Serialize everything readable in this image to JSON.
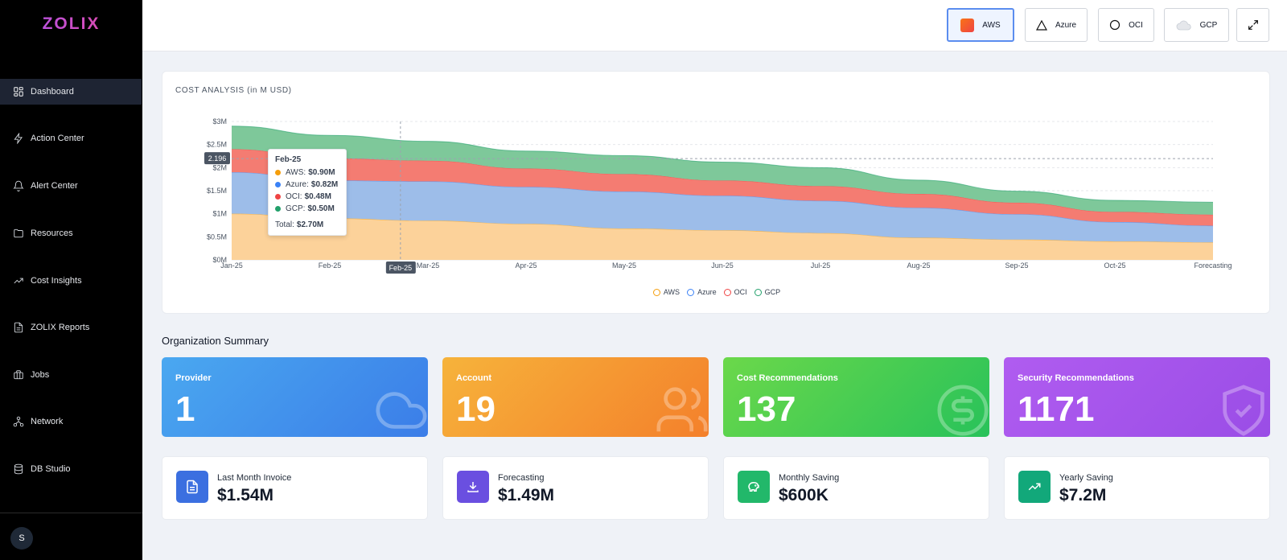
{
  "app": {
    "logo": "ZOLIX"
  },
  "sidebar": {
    "items": [
      {
        "label": "Dashboard",
        "icon": "dashboard-grid-icon"
      },
      {
        "label": "Action Center",
        "icon": "lightning-icon"
      },
      {
        "label": "Alert Center",
        "icon": "bell-icon"
      },
      {
        "label": "Resources",
        "icon": "folder-icon"
      },
      {
        "label": "Cost Insights",
        "icon": "trend-up-icon"
      },
      {
        "label": "ZOLIX Reports",
        "icon": "document-icon"
      },
      {
        "label": "Jobs",
        "icon": "briefcase-icon"
      },
      {
        "label": "Network",
        "icon": "network-icon"
      },
      {
        "label": "DB Studio",
        "icon": "database-icon"
      }
    ],
    "user_initial": "S"
  },
  "topbar": {
    "providers": [
      {
        "label": "AWS",
        "icon": "aws-square-icon",
        "active": true
      },
      {
        "label": "Azure",
        "icon": "triangle-icon",
        "active": false
      },
      {
        "label": "OCI",
        "icon": "circle-icon",
        "active": false
      },
      {
        "label": "GCP",
        "icon": "cloud-icon",
        "active": false
      }
    ]
  },
  "chart_title": "COST ANALYSIS (in M USD)",
  "chart_data": {
    "type": "area",
    "stacked": true,
    "x": [
      "Jan-25",
      "Feb-25",
      "Mar-25",
      "Apr-25",
      "May-25",
      "Jun-25",
      "Jul-25",
      "Aug-25",
      "Sep-25",
      "Oct-25",
      "Forecasting"
    ],
    "series": [
      {
        "name": "AWS",
        "color": "#f59e0b",
        "values": [
          1.0,
          0.9,
          0.85,
          0.78,
          0.68,
          0.64,
          0.58,
          0.48,
          0.44,
          0.4,
          0.38
        ]
      },
      {
        "name": "Azure",
        "color": "#3b82f6",
        "values": [
          0.9,
          0.82,
          0.85,
          0.8,
          0.8,
          0.75,
          0.7,
          0.65,
          0.55,
          0.42,
          0.36
        ]
      },
      {
        "name": "OCI",
        "color": "#ef4444",
        "values": [
          0.5,
          0.48,
          0.45,
          0.4,
          0.38,
          0.33,
          0.32,
          0.3,
          0.25,
          0.22,
          0.24
        ]
      },
      {
        "name": "GCP",
        "color": "#22a06b",
        "values": [
          0.5,
          0.5,
          0.42,
          0.38,
          0.4,
          0.4,
          0.4,
          0.3,
          0.25,
          0.25,
          0.27
        ]
      }
    ],
    "yticks": [
      "$0M",
      "$0.5M",
      "$1M",
      "$1.5M",
      "$2M",
      "$2.5M",
      "$3M"
    ],
    "ylim": [
      0,
      3
    ],
    "crosshair_x_label": "Feb-25",
    "crosshair_y_label": "2.196",
    "crosshair_y_value": 2.196,
    "crosshair_x_index": 1.72,
    "legend": [
      "AWS",
      "Azure",
      "OCI",
      "GCP"
    ],
    "legend_position": "bottom-center",
    "grid": true,
    "tooltip": {
      "title": "Feb-25",
      "rows": [
        {
          "label": "AWS:",
          "value": "$0.90M",
          "color": "#f59e0b"
        },
        {
          "label": "Azure:",
          "value": "$0.82M",
          "color": "#3b82f6"
        },
        {
          "label": "OCI:",
          "value": "$0.48M",
          "color": "#ef4444"
        },
        {
          "label": "GCP:",
          "value": "$0.50M",
          "color": "#22a06b"
        }
      ],
      "total_label": "Total:",
      "total_value": "$2.70M"
    }
  },
  "org": {
    "title": "Organization Summary",
    "stats": [
      {
        "label": "Provider",
        "value": "1",
        "icon": "cloud-icon"
      },
      {
        "label": "Account",
        "value": "19",
        "icon": "users-icon"
      },
      {
        "label": "Cost Recommendations",
        "value": "137",
        "icon": "dollar-icon"
      },
      {
        "label": "Security Recommendations",
        "value": "1171",
        "icon": "shield-check-icon"
      }
    ],
    "mini": [
      {
        "label": "Last Month Invoice",
        "value": "$1.54M",
        "icon": "invoice-icon"
      },
      {
        "label": "Forecasting",
        "value": "$1.49M",
        "icon": "download-icon"
      },
      {
        "label": "Monthly Saving",
        "value": "$600K",
        "icon": "piggy-bank-icon"
      },
      {
        "label": "Yearly Saving",
        "value": "$7.2M",
        "icon": "trend-up-icon"
      }
    ]
  },
  "colors": {
    "accent": "#5b8def",
    "provider_gradient": [
      "#4aa8f0",
      "#3b7de8"
    ],
    "account_gradient": [
      "#f6b33b",
      "#f4802b"
    ],
    "cost_gradient": [
      "#6bd84a",
      "#28c25a"
    ],
    "security_gradient": [
      "#b05cf0",
      "#9a4de6"
    ],
    "invoice_icon_bg": "#3b6fe0",
    "forecast_icon_bg": "#6a4fe0",
    "monthly_icon_bg": "#22b86a",
    "yearly_icon_bg": "#12a87a"
  }
}
